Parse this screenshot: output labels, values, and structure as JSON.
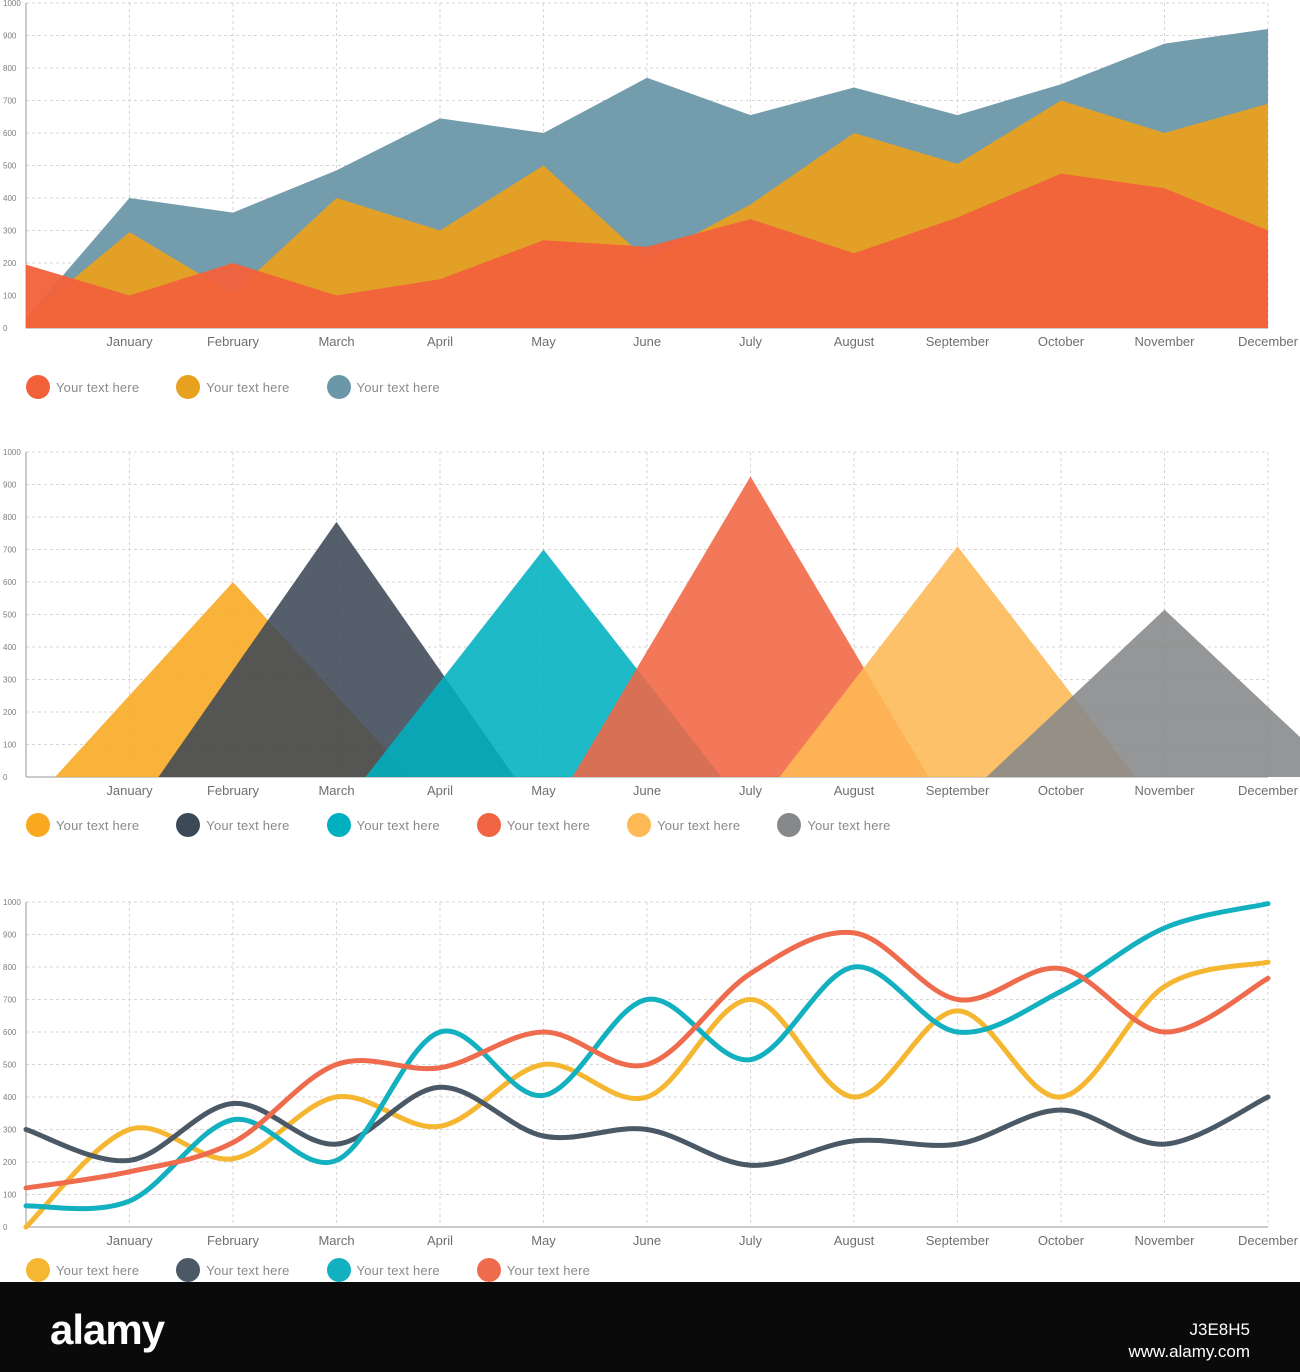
{
  "chart_data": [
    {
      "type": "area",
      "categories": [
        "January",
        "February",
        "March",
        "April",
        "May",
        "June",
        "July",
        "August",
        "September",
        "October",
        "November",
        "December"
      ],
      "ylim": [
        0,
        1000
      ],
      "yticks": [
        0,
        100,
        200,
        300,
        400,
        500,
        600,
        700,
        800,
        900,
        1000
      ],
      "grid": true,
      "series": [
        {
          "name": "Your text here",
          "color": "#f2613a",
          "start": 195,
          "values": [
            100,
            200,
            100,
            150,
            270,
            250,
            335,
            230,
            340,
            475,
            430,
            300
          ]
        },
        {
          "name": "Your text here",
          "color": "#e8a11f",
          "start": 30,
          "values": [
            295,
            105,
            400,
            300,
            500,
            210,
            380,
            600,
            505,
            700,
            600,
            690
          ]
        },
        {
          "name": "Your text here",
          "color": "#6b98a8",
          "start": 30,
          "values": [
            400,
            355,
            485,
            645,
            600,
            770,
            655,
            740,
            655,
            750,
            875,
            920
          ]
        }
      ]
    },
    {
      "type": "area",
      "categories": [
        "January",
        "February",
        "March",
        "April",
        "May",
        "June",
        "July",
        "August",
        "September",
        "October",
        "November",
        "December"
      ],
      "ylim": [
        0,
        1000
      ],
      "yticks": [
        0,
        100,
        200,
        300,
        400,
        500,
        600,
        700,
        800,
        900,
        1000
      ],
      "grid": true,
      "series": [
        {
          "name": "Your text here",
          "color": "#f9a81f",
          "peak_at": "February",
          "value": 600
        },
        {
          "name": "Your text here",
          "color": "#3d4957",
          "peak_at": "March",
          "value": 785
        },
        {
          "name": "Your text here",
          "color": "#00b0c0",
          "peak_at": "May",
          "value": 700
        },
        {
          "name": "Your text here",
          "color": "#f16543",
          "peak_at": "July",
          "value": 925
        },
        {
          "name": "Your text here",
          "color": "#fdb954",
          "peak_at": "September",
          "value": 710
        },
        {
          "name": "Your text here",
          "color": "#868889",
          "peak_at": "November",
          "value": 515
        }
      ]
    },
    {
      "type": "line",
      "categories": [
        "January",
        "February",
        "March",
        "April",
        "May",
        "June",
        "July",
        "August",
        "September",
        "October",
        "November",
        "December"
      ],
      "ylim": [
        0,
        1000
      ],
      "yticks": [
        0,
        100,
        200,
        300,
        400,
        500,
        600,
        700,
        800,
        900,
        1000
      ],
      "grid": true,
      "smooth": true,
      "series": [
        {
          "name": "Your text here",
          "color": "#f5b731",
          "start": 0,
          "values": [
            300,
            210,
            400,
            310,
            500,
            400,
            700,
            400,
            665,
            400,
            740,
            815
          ]
        },
        {
          "name": "Your text here",
          "color": "#4a5965",
          "start": 300,
          "values": [
            205,
            380,
            255,
            430,
            280,
            300,
            190,
            265,
            255,
            360,
            255,
            400
          ]
        },
        {
          "name": "Your text here",
          "color": "#13b0c0",
          "start": 65,
          "values": [
            80,
            330,
            205,
            600,
            405,
            700,
            515,
            800,
            600,
            725,
            920,
            995
          ]
        },
        {
          "name": "Your text here",
          "color": "#ee6b4e",
          "start": 120,
          "values": [
            170,
            260,
            500,
            490,
            600,
            500,
            780,
            905,
            700,
            795,
            600,
            765
          ]
        }
      ]
    }
  ],
  "watermark": {
    "logo": "alamy",
    "image_id": "J3E8H5",
    "url": "www.alamy.com"
  }
}
